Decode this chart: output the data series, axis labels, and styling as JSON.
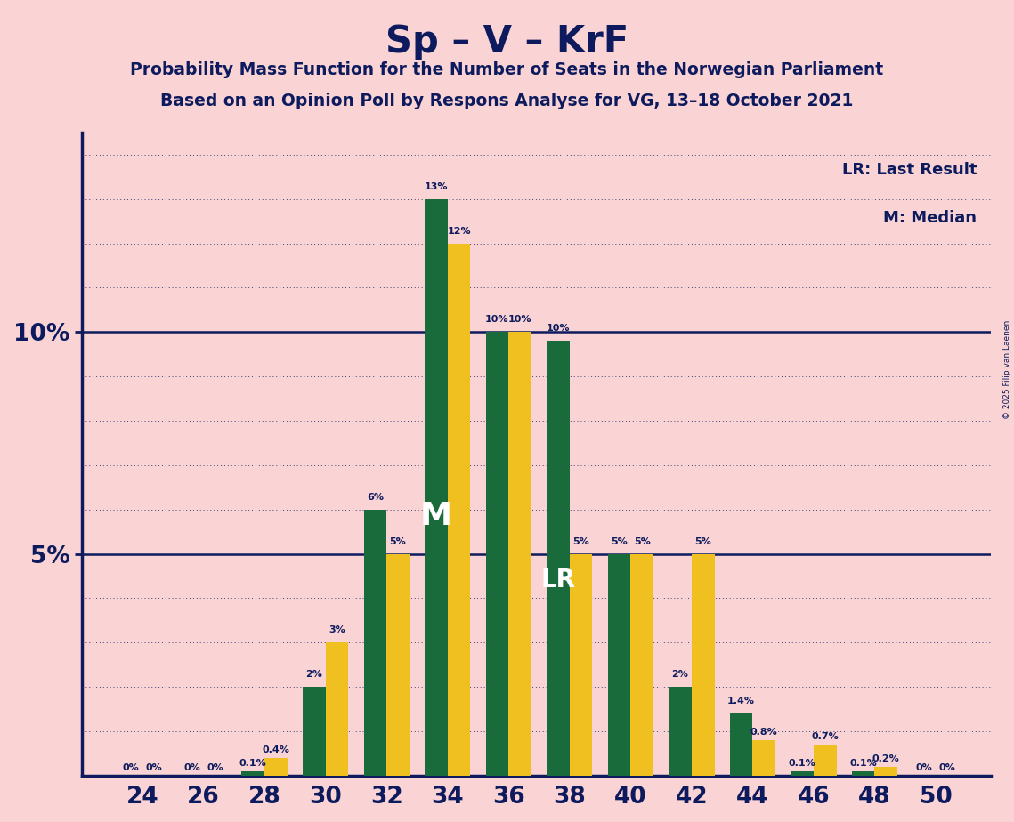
{
  "title": "Sp – V – KrF",
  "subtitle1": "Probability Mass Function for the Number of Seats in the Norwegian Parliament",
  "subtitle2": "Based on an Opinion Poll by Respons Analyse for VG, 13–18 October 2021",
  "copyright": "© 2025 Filip van Laenen",
  "lr_label": "LR: Last Result",
  "m_label": "M: Median",
  "background_color": "#FAD4D4",
  "dark_green": "#1A6B3C",
  "yellow": "#F0C020",
  "navy": "#0D1B5E",
  "seats": [
    24,
    26,
    28,
    30,
    32,
    34,
    36,
    38,
    40,
    42,
    44,
    46,
    48,
    50
  ],
  "green_values": [
    0.0,
    0.0,
    0.1,
    2.0,
    6.0,
    13.0,
    10.0,
    9.8,
    5.0,
    2.0,
    1.4,
    0.1,
    0.1,
    0.0
  ],
  "yellow_values": [
    0.0,
    0.0,
    0.4,
    3.0,
    5.0,
    12.0,
    10.0,
    5.0,
    5.0,
    5.0,
    0.8,
    0.7,
    0.2,
    0.0
  ],
  "green_labels": [
    "0%",
    "0%",
    "0.1%",
    "2%",
    "6%",
    "13%",
    "10%",
    "10%",
    "5%",
    "2%",
    "1.4%",
    "0.1%",
    "0.1%",
    "0%"
  ],
  "yellow_labels": [
    "0%",
    "0%",
    "0.4%",
    "3%",
    "5%",
    "12%",
    "10%",
    "5%",
    "5%",
    "5%",
    "0.8%",
    "0.7%",
    "0.2%",
    "0%"
  ],
  "median_seat": 34,
  "lr_seat": 38,
  "ylim_max": 14.5,
  "grid_step": 1.0,
  "solid_lines": [
    5.0,
    10.0
  ]
}
